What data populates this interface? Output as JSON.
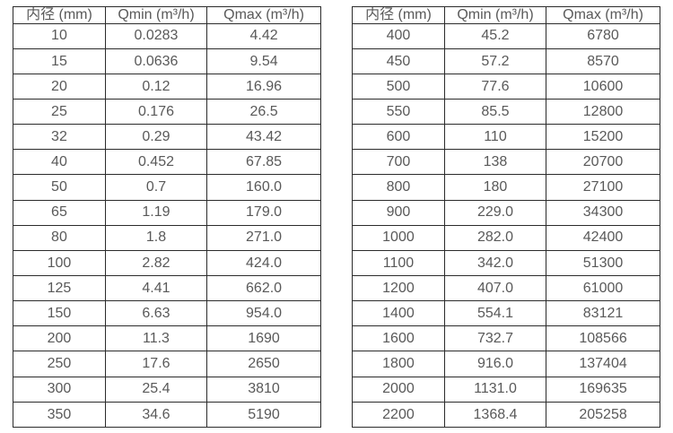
{
  "colors": {
    "background": "#ffffff",
    "table_border": "#2b2b2b",
    "table_text": "#595959"
  },
  "chart_data": [
    {
      "type": "table",
      "title": "",
      "columns": [
        "内径 (mm)",
        "Qmin (m³/h)",
        "Qmax (m³/h)"
      ],
      "rows": [
        [
          "10",
          "0.0283",
          "4.42"
        ],
        [
          "15",
          "0.0636",
          "9.54"
        ],
        [
          "20",
          "0.12",
          "16.96"
        ],
        [
          "25",
          "0.176",
          "26.5"
        ],
        [
          "32",
          "0.29",
          "43.42"
        ],
        [
          "40",
          "0.452",
          "67.85"
        ],
        [
          "50",
          "0.7",
          "160.0"
        ],
        [
          "65",
          "1.19",
          "179.0"
        ],
        [
          "80",
          "1.8",
          "271.0"
        ],
        [
          "100",
          "2.82",
          "424.0"
        ],
        [
          "125",
          "4.41",
          "662.0"
        ],
        [
          "150",
          "6.63",
          "954.0"
        ],
        [
          "200",
          "11.3",
          "1690"
        ],
        [
          "250",
          "17.6",
          "2650"
        ],
        [
          "300",
          "25.4",
          "3810"
        ],
        [
          "350",
          "34.6",
          "5190"
        ]
      ]
    },
    {
      "type": "table",
      "title": "",
      "columns": [
        "内径 (mm)",
        "Qmin (m³/h)",
        "Qmax (m³/h)"
      ],
      "rows": [
        [
          "400",
          "45.2",
          "6780"
        ],
        [
          "450",
          "57.2",
          "8570"
        ],
        [
          "500",
          "77.6",
          "10600"
        ],
        [
          "550",
          "85.5",
          "12800"
        ],
        [
          "600",
          "110",
          "15200"
        ],
        [
          "700",
          "138",
          "20700"
        ],
        [
          "800",
          "180",
          "27100"
        ],
        [
          "900",
          "229.0",
          "34300"
        ],
        [
          "1000",
          "282.0",
          "42400"
        ],
        [
          "1100",
          "342.0",
          "51300"
        ],
        [
          "1200",
          "407.0",
          "61000"
        ],
        [
          "1400",
          "554.1",
          "83121"
        ],
        [
          "1600",
          "732.7",
          "108566"
        ],
        [
          "1800",
          "916.0",
          "137404"
        ],
        [
          "2000",
          "1131.0",
          "169635"
        ],
        [
          "2200",
          "1368.4",
          "205258"
        ]
      ]
    }
  ]
}
